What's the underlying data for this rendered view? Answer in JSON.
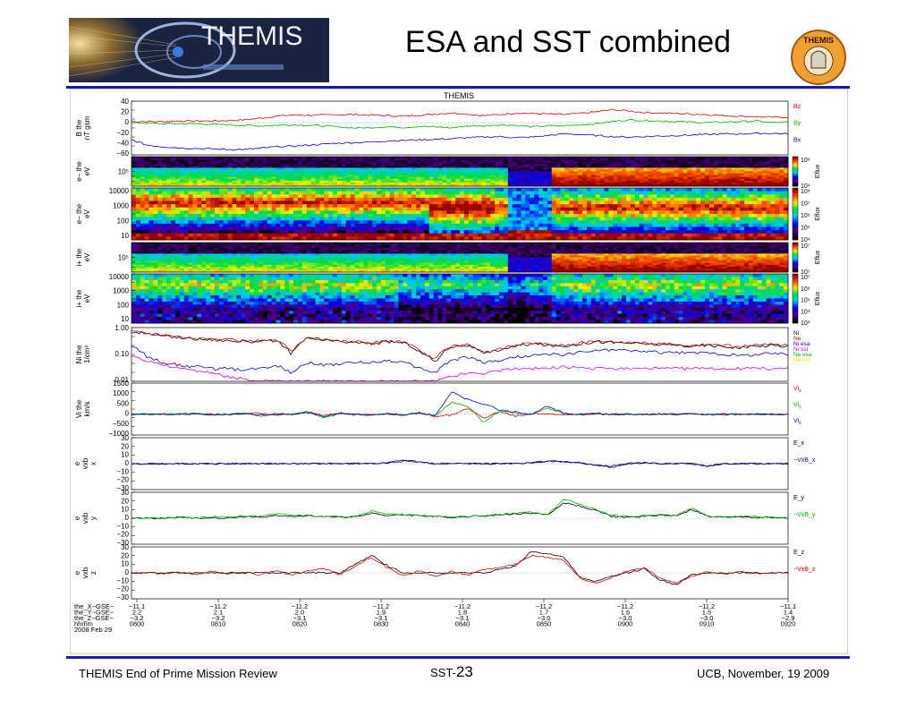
{
  "slide": {
    "title": "ESA and SST combined",
    "footer_left": "THEMIS End of Prime Mission Review",
    "footer_center_prefix": "SST-",
    "footer_center_number": "23",
    "footer_right": "UCB, November, 19 2009"
  },
  "logos": {
    "left_text": "THEMIS",
    "right_text": "THEMIS"
  },
  "colors": {
    "accent_rule": "#1a1aa8"
  },
  "chart_data": [
    {
      "type": "line",
      "panel": "B",
      "title": "THEMIS",
      "ylabel": [
        "B  the",
        "nT  gsm"
      ],
      "ylim": [
        -60,
        40
      ],
      "yticks": [
        "40",
        "20",
        "0",
        "−20",
        "−40",
        "−60"
      ],
      "series": [
        {
          "name": "Bz",
          "color": "#d40000",
          "values": [
            2,
            2,
            2,
            3,
            3,
            3,
            4,
            5,
            8,
            12,
            14,
            14,
            14,
            15,
            15,
            14,
            13,
            12,
            14,
            16,
            18,
            16,
            13,
            15,
            18,
            17,
            16,
            15,
            17,
            20,
            24,
            22,
            19,
            18,
            17,
            16,
            15,
            13,
            12,
            11,
            10,
            10
          ]
        },
        {
          "name": "By",
          "color": "#00b000",
          "values": [
            -1,
            -1,
            -2,
            -2,
            -2,
            -3,
            -4,
            -5,
            -6,
            -5,
            -4,
            -5,
            -6,
            -8,
            -10,
            -9,
            -8,
            -9,
            -7,
            -8,
            -10,
            -6,
            -6,
            -4,
            -5,
            -8,
            -6,
            -6,
            -4,
            -2,
            2,
            5,
            4,
            3,
            2,
            1,
            0,
            1,
            2,
            3,
            0,
            1
          ]
        },
        {
          "name": "Bx",
          "color": "#0000d0",
          "values": [
            -32,
            -42,
            -45,
            -47,
            -48,
            -49,
            -50,
            -50,
            -48,
            -45,
            -44,
            -42,
            -40,
            -38,
            -37,
            -36,
            -34,
            -33,
            -32,
            -31,
            -30,
            -28,
            -27,
            -26,
            -28,
            -27,
            -24,
            -21,
            -22,
            -24,
            -26,
            -27,
            -26,
            -25,
            -24,
            -23,
            -22,
            -21,
            -21,
            -20,
            -20,
            -21
          ]
        }
      ]
    },
    {
      "type": "heatmap",
      "panel": "e- the (SST)",
      "ylabel": [
        "e−  the",
        "eV"
      ],
      "yticks": [
        "10⁵"
      ],
      "colorbar": {
        "label": "Eflux",
        "ticks": [
          "10⁶",
          "10⁴"
        ]
      }
    },
    {
      "type": "heatmap",
      "panel": "e- the (ESA)",
      "ylabel": [
        "e−  the",
        "eV"
      ],
      "yticks": [
        "10000",
        "1000",
        "100",
        "10"
      ],
      "colorbar": {
        "label": "Eflux",
        "ticks": [
          "10⁸",
          "10⁷",
          "10⁶",
          "10⁵",
          "10⁴"
        ]
      }
    },
    {
      "type": "heatmap",
      "panel": "i+ the (SST)",
      "ylabel": [
        "i+  the",
        "eV"
      ],
      "yticks": [
        "10⁵"
      ],
      "colorbar": {
        "label": "Eflux",
        "ticks": [
          "10⁷",
          "10⁵"
        ]
      }
    },
    {
      "type": "heatmap",
      "panel": "i+ the (ESA)",
      "ylabel": [
        "i+  the",
        "eV"
      ],
      "yticks": [
        "10000",
        "1000",
        "100",
        "10"
      ],
      "colorbar": {
        "label": "Eflux",
        "ticks": [
          "10⁷",
          "10⁶",
          "10⁵",
          "10⁴",
          "10³"
        ]
      }
    },
    {
      "type": "line",
      "panel": "Ni",
      "log_y": true,
      "ylabel": [
        "Ni  the",
        "1/cm³"
      ],
      "ylim": [
        0.01,
        1.0
      ],
      "yticks": [
        "1.00",
        "0.10",
        "0.01"
      ],
      "series": [
        {
          "name": "Ni",
          "color": "#000000",
          "values": [
            0.7,
            0.6,
            0.5,
            0.42,
            0.38,
            0.35,
            0.33,
            0.3,
            0.3,
            0.32,
            0.1,
            0.4,
            0.35,
            0.3,
            0.28,
            0.25,
            0.3,
            0.28,
            0.12,
            0.05,
            0.2,
            0.22,
            0.1,
            0.15,
            0.2,
            0.25,
            0.22,
            0.2,
            0.25,
            0.3,
            0.28,
            0.27,
            0.25,
            0.23,
            0.22,
            0.2,
            0.22,
            0.2,
            0.18,
            0.2,
            0.22,
            0.2
          ]
        },
        {
          "name": "Ne",
          "color": "#d40000",
          "values": [
            0.75,
            0.62,
            0.52,
            0.45,
            0.4,
            0.37,
            0.35,
            0.32,
            0.32,
            0.34,
            0.11,
            0.42,
            0.36,
            0.32,
            0.3,
            0.27,
            0.32,
            0.29,
            0.13,
            0.06,
            0.22,
            0.24,
            0.11,
            0.16,
            0.22,
            0.27,
            0.24,
            0.22,
            0.27,
            0.32,
            0.3,
            0.29,
            0.27,
            0.25,
            0.24,
            0.22,
            0.24,
            0.22,
            0.2,
            0.22,
            0.24,
            0.22
          ]
        },
        {
          "name": "Ni esa",
          "color": "#0000d0",
          "values": [
            0.2,
            0.08,
            0.05,
            0.04,
            0.035,
            0.03,
            0.03,
            0.025,
            0.03,
            0.04,
            0.02,
            0.05,
            0.04,
            0.045,
            0.05,
            0.05,
            0.06,
            0.05,
            0.03,
            0.02,
            0.06,
            0.08,
            0.05,
            0.06,
            0.08,
            0.09,
            0.1,
            0.1,
            0.12,
            0.14,
            0.15,
            0.14,
            0.13,
            0.12,
            0.12,
            0.11,
            0.12,
            0.1,
            0.09,
            0.1,
            0.11,
            0.1
          ]
        },
        {
          "name": "Ni sst",
          "color": "#e000e0",
          "values": [
            0.09,
            0.06,
            0.04,
            0.03,
            0.025,
            0.02,
            0.015,
            0.012,
            0.01,
            0.01,
            0.01,
            0.01,
            0.01,
            0.01,
            0.01,
            0.01,
            0.01,
            0.01,
            0.01,
            0.01,
            0.015,
            0.02,
            0.02,
            0.025,
            0.03,
            0.03,
            0.03,
            0.035,
            0.03,
            0.03,
            0.03,
            0.03,
            0.03,
            0.03,
            0.03,
            0.03,
            0.03,
            0.03,
            0.03,
            0.03,
            0.03,
            0.03
          ]
        },
        {
          "name": "Ne esa",
          "color": "#00b000",
          "values": []
        },
        {
          "name": "Ne sst",
          "color": "#e0e000",
          "values": []
        }
      ]
    },
    {
      "type": "line",
      "panel": "Vi",
      "ylabel": [
        "Vi  the",
        "km/s"
      ],
      "ylim": [
        -1000,
        1500
      ],
      "yticks": [
        "1500",
        "1000",
        "500",
        "0",
        "−500",
        "−1000"
      ],
      "series": [
        {
          "name": "Vi_x",
          "legend_label": "Vi",
          "legend_sub": "x",
          "color": "#d40000",
          "values": [
            0,
            10,
            -20,
            30,
            20,
            0,
            -30,
            40,
            50,
            -30,
            0,
            100,
            -80,
            60,
            -40,
            20,
            0,
            -60,
            80,
            -100,
            -40,
            300,
            -200,
            150,
            -100,
            50,
            0,
            -40,
            -20,
            0,
            10,
            -30,
            0,
            20,
            -10,
            30,
            0,
            -20,
            0,
            10,
            0,
            0
          ]
        },
        {
          "name": "Vi_y",
          "legend_label": "Vi",
          "legend_sub": "y",
          "color": "#00b000",
          "values": [
            0,
            -20,
            30,
            -10,
            50,
            -40,
            0,
            60,
            -80,
            40,
            -20,
            150,
            -200,
            60,
            0,
            -60,
            30,
            -40,
            60,
            -80,
            600,
            400,
            -400,
            150,
            60,
            -20,
            300,
            50,
            -10,
            60,
            -40,
            20,
            -20,
            10,
            0,
            40,
            -30,
            0,
            20,
            -10,
            0,
            0
          ]
        },
        {
          "name": "Vi_z",
          "legend_label": "Vi",
          "legend_sub": "z",
          "color": "#0000d0",
          "values": [
            0,
            -10,
            10,
            -20,
            20,
            -10,
            0,
            30,
            -40,
            20,
            0,
            80,
            -120,
            40,
            0,
            -40,
            20,
            -30,
            50,
            -60,
            1100,
            700,
            500,
            200,
            100,
            0,
            400,
            50,
            0,
            40,
            -20,
            10,
            -10,
            0,
            10,
            20,
            -20,
            0,
            10,
            0,
            0,
            0
          ]
        }
      ]
    },
    {
      "type": "line",
      "panel": "E_x",
      "ylabel": [
        "e",
        "vxb",
        "x"
      ],
      "ylim": [
        -30,
        30
      ],
      "yticks": [
        "30",
        "20",
        "10",
        "0",
        "−10",
        "−20",
        "−30"
      ],
      "series": [
        {
          "name": "E_x",
          "color": "#000000",
          "values": [
            0,
            0,
            0,
            0,
            0,
            0,
            0,
            0,
            0,
            0,
            0,
            0,
            0,
            0,
            0,
            0,
            1,
            4,
            2,
            0,
            0,
            0,
            0,
            0,
            0,
            1,
            3,
            2,
            1,
            -2,
            -4,
            0,
            1,
            0,
            0,
            0,
            -3,
            0,
            0,
            0,
            0,
            0
          ]
        },
        {
          "name": "−VxB_x",
          "color": "#0000d0",
          "values": [
            0,
            0,
            0,
            0,
            0,
            0,
            0,
            0,
            0,
            0,
            0,
            0,
            0,
            0,
            0,
            0,
            1,
            3,
            2,
            0,
            0,
            0,
            0,
            0,
            0,
            1,
            3,
            2,
            1,
            -2,
            -3,
            0,
            1,
            0,
            0,
            0,
            -3,
            0,
            0,
            0,
            0,
            0
          ]
        }
      ]
    },
    {
      "type": "line",
      "panel": "E_y",
      "ylabel": [
        "e",
        "vxb",
        "y"
      ],
      "ylim": [
        -30,
        30
      ],
      "yticks": [
        "30",
        "20",
        "10",
        "0",
        "−10",
        "−20",
        "−30"
      ],
      "series": [
        {
          "name": "E_y",
          "color": "#000000",
          "values": [
            0,
            0,
            0,
            1,
            0,
            1,
            0,
            2,
            1,
            3,
            2,
            3,
            2,
            1,
            2,
            6,
            3,
            4,
            3,
            2,
            1,
            2,
            3,
            4,
            5,
            6,
            4,
            18,
            14,
            9,
            2,
            1,
            2,
            4,
            3,
            10,
            2,
            1,
            2,
            1,
            1,
            0
          ]
        },
        {
          "name": "−VxB_y",
          "color": "#00b000",
          "values": [
            0,
            0,
            0,
            1,
            0,
            2,
            1,
            3,
            2,
            5,
            4,
            3,
            2,
            2,
            2,
            8,
            5,
            4,
            3,
            3,
            1,
            2,
            3,
            4,
            6,
            7,
            4,
            22,
            16,
            10,
            3,
            2,
            3,
            4,
            3,
            12,
            2,
            2,
            2,
            2,
            1,
            0
          ]
        }
      ]
    },
    {
      "type": "line",
      "panel": "E_z",
      "ylabel": [
        "e",
        "vxb",
        "z"
      ],
      "ylim": [
        -30,
        30
      ],
      "yticks": [
        "30",
        "20",
        "10",
        "0",
        "−10",
        "−20",
        "−30"
      ],
      "series": [
        {
          "name": "E_z",
          "color": "#000000",
          "values": [
            0,
            0,
            0,
            0,
            0,
            0,
            0,
            0,
            0,
            0,
            0,
            0,
            0,
            0,
            10,
            20,
            8,
            0,
            0,
            0,
            0,
            0,
            0,
            4,
            8,
            25,
            22,
            18,
            -5,
            -10,
            -4,
            0,
            5,
            -8,
            -14,
            -2,
            0,
            0,
            0,
            0,
            0,
            0
          ]
        },
        {
          "name": "−VxB_z",
          "color": "#d40000",
          "values": [
            0,
            0,
            -1,
            1,
            -2,
            2,
            -1,
            1,
            -2,
            3,
            -3,
            2,
            5,
            -2,
            8,
            18,
            6,
            -4,
            3,
            -5,
            2,
            -3,
            4,
            6,
            10,
            20,
            18,
            15,
            -6,
            -12,
            -5,
            2,
            6,
            -6,
            -12,
            -4,
            2,
            -2,
            1,
            -1,
            0,
            0
          ]
        }
      ]
    }
  ],
  "time_axis": {
    "row_labels": [
      "the_X−GSE−",
      "the_Y−GSE−",
      "the_Z−GSE−",
      "hhmm",
      "2008 Feb 29"
    ],
    "ticks": [
      {
        "x": "−11.1",
        "y": "2.2",
        "z": "−3.2",
        "t": "0800"
      },
      {
        "x": "−11.2",
        "y": "2.1",
        "z": "−3.2",
        "t": "0810"
      },
      {
        "x": "−11.2",
        "y": "2.0",
        "z": "−3.1",
        "t": "0820"
      },
      {
        "x": "−11.2",
        "y": "1.9",
        "z": "−3.1",
        "t": "0830"
      },
      {
        "x": "−11.2",
        "y": "1.8",
        "z": "−3.1",
        "t": "0840"
      },
      {
        "x": "−11.2",
        "y": "1.7",
        "z": "−3.0",
        "t": "0850"
      },
      {
        "x": "−11.2",
        "y": "1.6",
        "z": "−3.0",
        "t": "0900"
      },
      {
        "x": "−11.2",
        "y": "1.5",
        "z": "−3.0",
        "t": "0910"
      },
      {
        "x": "−11.1",
        "y": "1.4",
        "z": "−2.9",
        "t": "0920"
      }
    ]
  }
}
